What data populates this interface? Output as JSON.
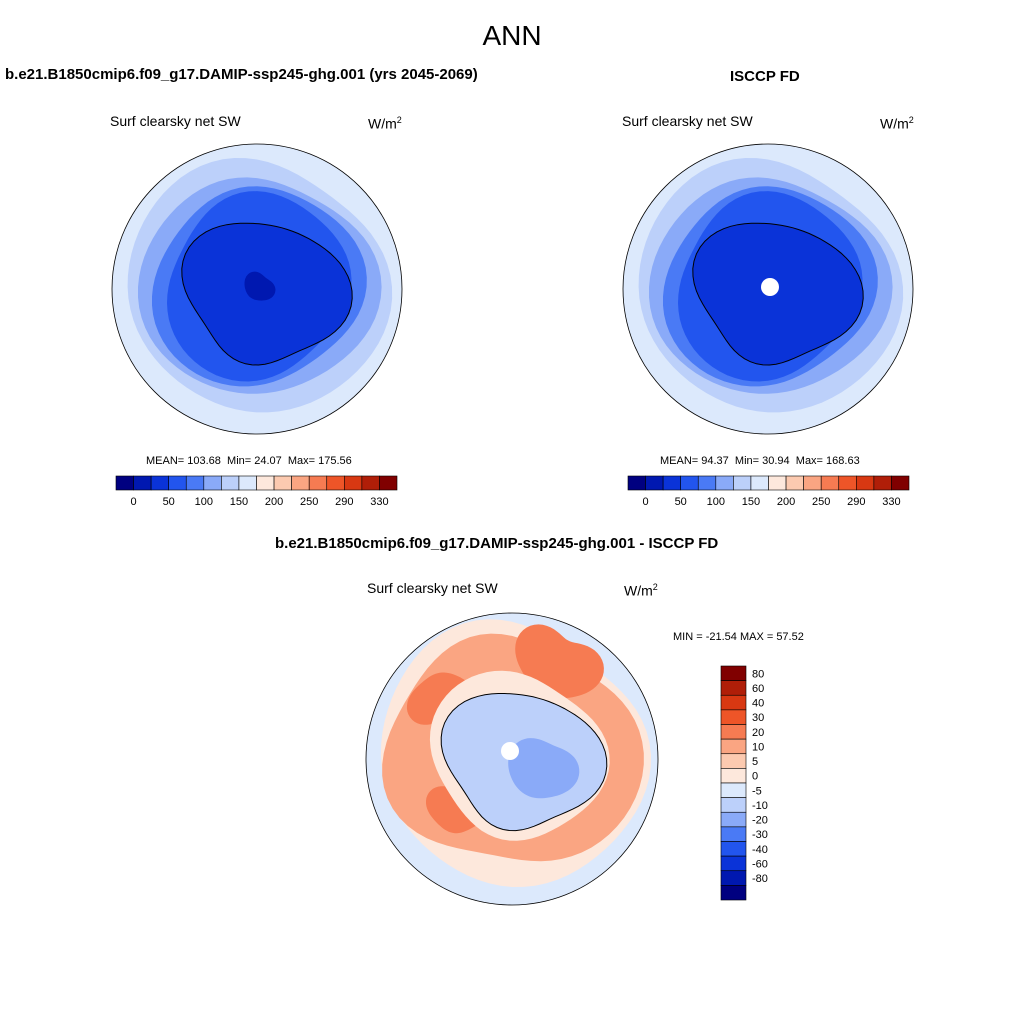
{
  "page": {
    "main_title": "ANN"
  },
  "panels": {
    "model": {
      "title": "b.e21.B1850cmip6.f09_g17.DAMIP-ssp245-ghg.001 (yrs 2045-2069)",
      "var_label": "Surf clearsky net SW",
      "units": "W/m",
      "units_sup": "2",
      "stats_mean": "MEAN= 103.68",
      "stats_min": "Min=  24.07",
      "stats_max": "Max= 175.56"
    },
    "obs": {
      "title": "ISCCP FD",
      "var_label": "Surf clearsky net SW",
      "units": "W/m",
      "units_sup": "2",
      "stats_mean": "MEAN=  94.37",
      "stats_min": "Min=  30.94",
      "stats_max": "Max= 168.63"
    },
    "diff": {
      "title": "b.e21.B1850cmip6.f09_g17.DAMIP-ssp245-ghg.001 - ISCCP FD",
      "var_label": "Surf clearsky net SW",
      "units": "W/m",
      "units_sup": "2",
      "minmax": "MIN = -21.54 MAX =  57.52"
    }
  },
  "chart_data": [
    {
      "type": "heatmap",
      "projection": "south-polar-stereographic",
      "title": "b.e21.B1850cmip6.f09_g17.DAMIP-ssp245-ghg.001 (yrs 2045-2069)",
      "variable": "Surf clearsky net SW",
      "units": "W/m2",
      "mean": 103.68,
      "min": 24.07,
      "max": 175.56,
      "colorbar": {
        "orientation": "horizontal",
        "labels": [
          "0",
          "50",
          "100",
          "150",
          "200",
          "250",
          "290",
          "330"
        ],
        "colors": [
          "#000080",
          "#0018b0",
          "#0a33d8",
          "#2255ee",
          "#4a7af5",
          "#8aaaf8",
          "#bcd0fa",
          "#dce9fc",
          "#fde8dc",
          "#fccab0",
          "#faa582",
          "#f67b52",
          "#ee5528",
          "#d83812",
          "#b01e08",
          "#800000"
        ]
      },
      "field_levels": [
        {
          "name": "outer-ring",
          "value": 165,
          "color": "#dce9fc"
        },
        {
          "name": "ring-2",
          "value": 140,
          "color": "#bcd0fa"
        },
        {
          "name": "ring-3",
          "value": 110,
          "color": "#8aaaf8"
        },
        {
          "name": "ring-4",
          "value": 85,
          "color": "#4a7af5"
        },
        {
          "name": "ring-5",
          "value": 65,
          "color": "#2255ee"
        },
        {
          "name": "continent",
          "value": 45,
          "color": "#0a33d8"
        },
        {
          "name": "plateau-min",
          "value": 30,
          "color": "#0018b0"
        }
      ]
    },
    {
      "type": "heatmap",
      "projection": "south-polar-stereographic",
      "title": "ISCCP FD",
      "variable": "Surf clearsky net SW",
      "units": "W/m2",
      "mean": 94.37,
      "min": 30.94,
      "max": 168.63,
      "colorbar": {
        "orientation": "horizontal",
        "labels": [
          "0",
          "50",
          "100",
          "150",
          "200",
          "250",
          "290",
          "330"
        ],
        "colors": [
          "#000080",
          "#0018b0",
          "#0a33d8",
          "#2255ee",
          "#4a7af5",
          "#8aaaf8",
          "#bcd0fa",
          "#dce9fc",
          "#fde8dc",
          "#fccab0",
          "#faa582",
          "#f67b52",
          "#ee5528",
          "#d83812",
          "#b01e08",
          "#800000"
        ]
      },
      "field_levels": [
        {
          "name": "outer-ring",
          "value": 165,
          "color": "#dce9fc"
        },
        {
          "name": "ring-2",
          "value": 140,
          "color": "#bcd0fa"
        },
        {
          "name": "ring-3",
          "value": 110,
          "color": "#8aaaf8"
        },
        {
          "name": "ring-4",
          "value": 85,
          "color": "#4a7af5"
        },
        {
          "name": "ring-5",
          "value": 65,
          "color": "#2255ee"
        },
        {
          "name": "continent",
          "value": 45,
          "color": "#0a33d8"
        },
        {
          "name": "missing-pole",
          "value": null,
          "color": "#ffffff"
        }
      ]
    },
    {
      "type": "heatmap",
      "projection": "south-polar-stereographic",
      "title": "b.e21.B1850cmip6.f09_g17.DAMIP-ssp245-ghg.001 - ISCCP FD",
      "variable": "Surf clearsky net SW",
      "units": "W/m2",
      "min": -21.54,
      "max": 57.52,
      "colorbar": {
        "orientation": "vertical",
        "labels": [
          "80",
          "60",
          "40",
          "30",
          "20",
          "10",
          "5",
          "0",
          "-5",
          "-10",
          "-20",
          "-30",
          "-40",
          "-60",
          "-80"
        ],
        "colors": [
          "#800000",
          "#b01e08",
          "#d83812",
          "#ee5528",
          "#f67b52",
          "#faa582",
          "#fccab0",
          "#fde8dc",
          "#dce9fc",
          "#bcd0fa",
          "#8aaaf8",
          "#4a7af5",
          "#2255ee",
          "#0a33d8",
          "#0018b0",
          "#000080"
        ]
      },
      "field_levels": [
        {
          "name": "outer-ring",
          "value": -2,
          "color": "#dce9fc"
        },
        {
          "name": "ocean-ring",
          "value": 3,
          "color": "#fde8dc"
        },
        {
          "name": "ocean-warm",
          "value": 15,
          "color": "#faa582"
        },
        {
          "name": "ocean-hot",
          "value": 30,
          "color": "#f67b52"
        },
        {
          "name": "continent",
          "value": -8,
          "color": "#bcd0fa"
        },
        {
          "name": "continent-cool",
          "value": -15,
          "color": "#8aaaf8"
        },
        {
          "name": "missing-pole",
          "value": null,
          "color": "#ffffff"
        }
      ]
    }
  ]
}
